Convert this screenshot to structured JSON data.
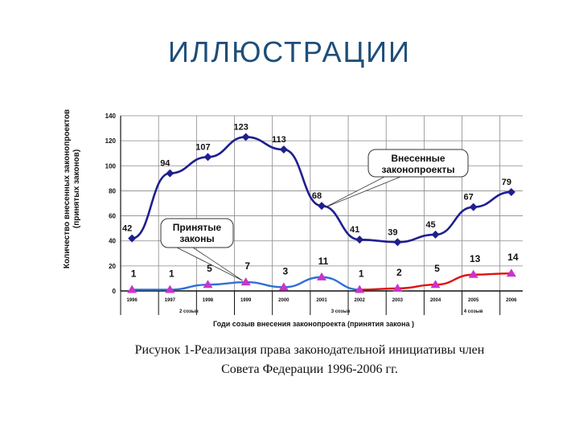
{
  "slide": {
    "title": "ИЛЛЮСТРАЦИИ",
    "caption_line1": "Рисунок 1-Реализация права законодательной инициативы член",
    "caption_line2": "Совета Федерации 1996-2006 гг."
  },
  "chart_data": {
    "type": "line",
    "title": "",
    "xlabel": "Годи созыв внесения законопроекта (принятия закона )",
    "ylabel": "Количество внесенных законопроектов (принятых законов)",
    "categories": [
      "1996",
      "1997",
      "1998",
      "1999",
      "2000",
      "2001",
      "2002",
      "2003",
      "2004",
      "2005",
      "2006"
    ],
    "convocations": [
      {
        "label": "2 созыв",
        "from": "1996",
        "to": "1999"
      },
      {
        "label": "3 созыв",
        "from": "2000",
        "to": "2003"
      },
      {
        "label": "4 созыв",
        "from": "2004",
        "to": "2006"
      }
    ],
    "ylim": [
      0,
      140
    ],
    "yticks": [
      0,
      20,
      40,
      60,
      80,
      100,
      120,
      140
    ],
    "grid": true,
    "series": [
      {
        "name": "Внесенные законопроекты",
        "values": [
          42,
          94,
          107,
          123,
          113,
          68,
          41,
          39,
          45,
          67,
          79
        ],
        "color": "#1f1f8f",
        "marker": "diamond"
      },
      {
        "name": "Принятые законы",
        "values": [
          1,
          1,
          5,
          7,
          3,
          11,
          1,
          2,
          5,
          13,
          14
        ],
        "color": "#2f6fd6",
        "color_later": "#e01010",
        "later_from": "2002",
        "marker": "triangle",
        "marker_color": "#cc33cc"
      }
    ]
  }
}
